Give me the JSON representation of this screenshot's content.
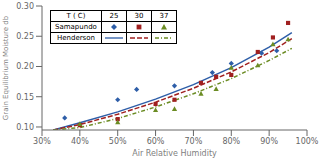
{
  "chart_data": {
    "type": "line",
    "title": "",
    "xlabel": "Air Relative Humidity",
    "ylabel": "Grain Equilibrium Moisture db",
    "xlim": [
      0.3,
      1.0
    ],
    "ylim": [
      0.095,
      0.3
    ],
    "xticks": [
      {
        "value": 0.3,
        "label": "30%"
      },
      {
        "value": 0.4,
        "label": "40%"
      },
      {
        "value": 0.5,
        "label": "50%"
      },
      {
        "value": 0.6,
        "label": "60%"
      },
      {
        "value": 0.7,
        "label": "70%"
      },
      {
        "value": 0.8,
        "label": "80%"
      },
      {
        "value": 0.9,
        "label": "90%"
      },
      {
        "value": 1.0,
        "label": "100%"
      }
    ],
    "yticks": [
      {
        "value": 0.1,
        "label": "0.10"
      },
      {
        "value": 0.15,
        "label": "0.15"
      },
      {
        "value": 0.2,
        "label": "0.20"
      },
      {
        "value": 0.25,
        "label": "0.25"
      },
      {
        "value": 0.3,
        "label": "0.30"
      }
    ],
    "grid": false,
    "legend": "upper left",
    "legend_title": "T ( C)",
    "series": [
      {
        "name": "Henderson",
        "temperature": "25",
        "type": "line",
        "line_style": "solid",
        "color": "#2E5EA8",
        "x": [
          0.33,
          0.4,
          0.5,
          0.6,
          0.7,
          0.8,
          0.9,
          0.96
        ],
        "values": [
          0.095,
          0.107,
          0.125,
          0.146,
          0.17,
          0.198,
          0.232,
          0.256
        ]
      },
      {
        "name": "Henderson",
        "temperature": "30",
        "type": "line",
        "line_style": "dashed",
        "color": "#A02020",
        "x": [
          0.33,
          0.4,
          0.5,
          0.6,
          0.7,
          0.8,
          0.9,
          0.96
        ],
        "values": [
          0.095,
          0.104,
          0.121,
          0.141,
          0.164,
          0.191,
          0.223,
          0.246
        ]
      },
      {
        "name": "Henderson",
        "temperature": "37",
        "type": "line",
        "line_style": "dashdot",
        "color": "#6B8C23",
        "x": [
          0.33,
          0.4,
          0.5,
          0.6,
          0.7,
          0.8,
          0.9,
          0.96
        ],
        "values": [
          0.095,
          0.099,
          0.114,
          0.133,
          0.155,
          0.18,
          0.21,
          0.23
        ]
      },
      {
        "name": "Samapundo",
        "temperature": "25",
        "type": "scatter",
        "marker": "diamond",
        "color": "#2E5EA8",
        "x": [
          0.36,
          0.5,
          0.55,
          0.65,
          0.75,
          0.8,
          0.88,
          0.92
        ],
        "values": [
          0.115,
          0.145,
          0.162,
          0.168,
          0.19,
          0.205,
          0.222,
          0.226
        ]
      },
      {
        "name": "Samapundo",
        "temperature": "30",
        "type": "scatter",
        "marker": "square",
        "color": "#A02020",
        "x": [
          0.4,
          0.5,
          0.6,
          0.65,
          0.72,
          0.76,
          0.8,
          0.87,
          0.91,
          0.95
        ],
        "values": [
          0.103,
          0.113,
          0.138,
          0.145,
          0.173,
          0.183,
          0.186,
          0.224,
          0.248,
          0.272
        ]
      },
      {
        "name": "Samapundo",
        "temperature": "37",
        "type": "scatter",
        "marker": "triangle",
        "color": "#6B8C23",
        "x": [
          0.4,
          0.5,
          0.6,
          0.65,
          0.72,
          0.76,
          0.8,
          0.87,
          0.91,
          0.95
        ],
        "values": [
          0.105,
          0.108,
          0.128,
          0.13,
          0.155,
          0.163,
          0.198,
          0.202,
          0.237,
          0.245
        ]
      }
    ]
  }
}
